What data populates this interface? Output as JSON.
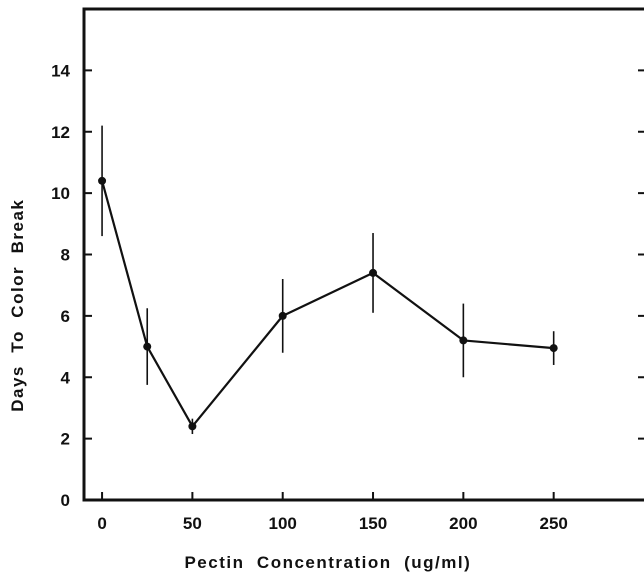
{
  "chart_data": {
    "type": "line",
    "title": "",
    "xlabel": "Pectin  Concentration  (ug/ml)",
    "ylabel": "Days  To  Color  Break",
    "x": [
      0,
      25,
      50,
      100,
      150,
      200,
      250
    ],
    "series": [
      {
        "values": [
          10.4,
          5.0,
          2.4,
          6.0,
          7.4,
          5.2,
          4.95
        ],
        "error": [
          1.8,
          1.25,
          0.25,
          1.2,
          1.3,
          1.2,
          0.55
        ]
      }
    ],
    "xticks": [
      "0",
      "50",
      "100",
      "150",
      "200",
      "250"
    ],
    "yticks": [
      "0",
      "2",
      "4",
      "6",
      "8",
      "10",
      "12",
      "14"
    ],
    "xlim": [
      -10,
      300
    ],
    "ylim": [
      0,
      16
    ],
    "grid": false,
    "legend": "none",
    "colors": {
      "line": "#111111",
      "background": "#ffffff"
    }
  }
}
